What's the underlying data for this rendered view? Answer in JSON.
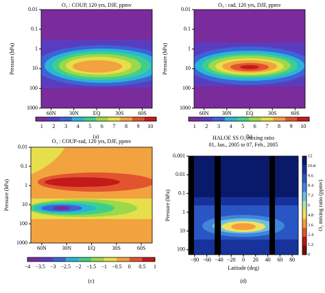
{
  "panels": [
    {
      "title": "O₃ : COUP, 120 yrs, DJF, ppmv",
      "label": "(a)",
      "y_label": "Pressure (hPa)",
      "yticks": [
        "0.01",
        "0.1",
        "1",
        "10",
        "100",
        "1000"
      ],
      "xticks": [
        "60N",
        "30N",
        "EQ",
        "30S",
        "60S"
      ],
      "colorbar": {
        "ticks": [
          "1",
          "2",
          "3",
          "4",
          "5",
          "6",
          "7",
          "8",
          "9",
          "10"
        ],
        "colors": [
          "#7a2c9c",
          "#5a3dbf",
          "#3d63d6",
          "#2ab4d6",
          "#3fcf8c",
          "#9bd84a",
          "#e6de4a",
          "#f2a23e",
          "#e2542e",
          "#c41a1a"
        ]
      }
    },
    {
      "title": "O₃ : rad, 120 yrs, DJF, ppmv",
      "label": "(b)",
      "y_label": "Pressure (hPa)",
      "yticks": [
        "0.01",
        "0.1",
        "1",
        "10",
        "100",
        "1000"
      ],
      "xticks": [
        "60N",
        "30N",
        "EQ",
        "30S",
        "60S"
      ],
      "colorbar": {
        "ticks": [
          "1",
          "2",
          "3",
          "4",
          "5",
          "6",
          "7",
          "8",
          "9",
          "10"
        ],
        "colors": [
          "#7a2c9c",
          "#5a3dbf",
          "#3d63d6",
          "#2ab4d6",
          "#3fcf8c",
          "#9bd84a",
          "#e6de4a",
          "#f2a23e",
          "#e2542e",
          "#c41a1a"
        ]
      }
    },
    {
      "title": "O₃ : COUP-rad, 120 yrs, DJF, ppmv",
      "label": "(c)",
      "y_label": "Pressure (hPa)",
      "yticks": [
        "0.01",
        "0.1",
        "1",
        "10",
        "100",
        "1000"
      ],
      "xticks": [
        "60N",
        "30N",
        "EQ",
        "30S",
        "60S"
      ],
      "colorbar": {
        "ticks": [
          "−4",
          "−3.5",
          "−3",
          "−2.5",
          "−2",
          "−1.5",
          "−1",
          "−0.5",
          "0",
          "0.5",
          "1"
        ],
        "colors": [
          "#7a2c9c",
          "#5a3dbf",
          "#3d63d6",
          "#2ab4d6",
          "#3fcf8c",
          "#9bd84a",
          "#e6de4a",
          "#f2a23e",
          "#e2542e",
          "#c41a1a"
        ]
      }
    },
    {
      "title": "HALOE SS O₃ mixing ratio",
      "subtitle": "01, Jan., 2005 to 07, Feb., 2005",
      "label": "(d)",
      "y_label": "Pressure (hPa)",
      "x_label": "Latitude (deg)",
      "colorbar_label": "O₃ mixing ratio (ppmv)",
      "yticks": [
        "0.001",
        "0.01",
        "0.1",
        "1",
        "10",
        "100"
      ],
      "xticks": [
        "−80",
        "−60",
        "−40",
        "−20",
        "0",
        "20",
        "40",
        "60",
        "80"
      ],
      "colorbar": {
        "ticks": [
          "12",
          "10.8",
          "9.6",
          "8.4",
          "7.2",
          "6",
          "4.8",
          "3.6",
          "2.4",
          "1.2",
          "0"
        ],
        "colors": [
          "#0a1a6a",
          "#17329a",
          "#2a55c4",
          "#3f86d8",
          "#6fc0e0",
          "#b7e2a8",
          "#f0e060",
          "#f3a03a",
          "#e4552a",
          "#b8141a",
          "#7a0a0a"
        ]
      }
    }
  ]
}
